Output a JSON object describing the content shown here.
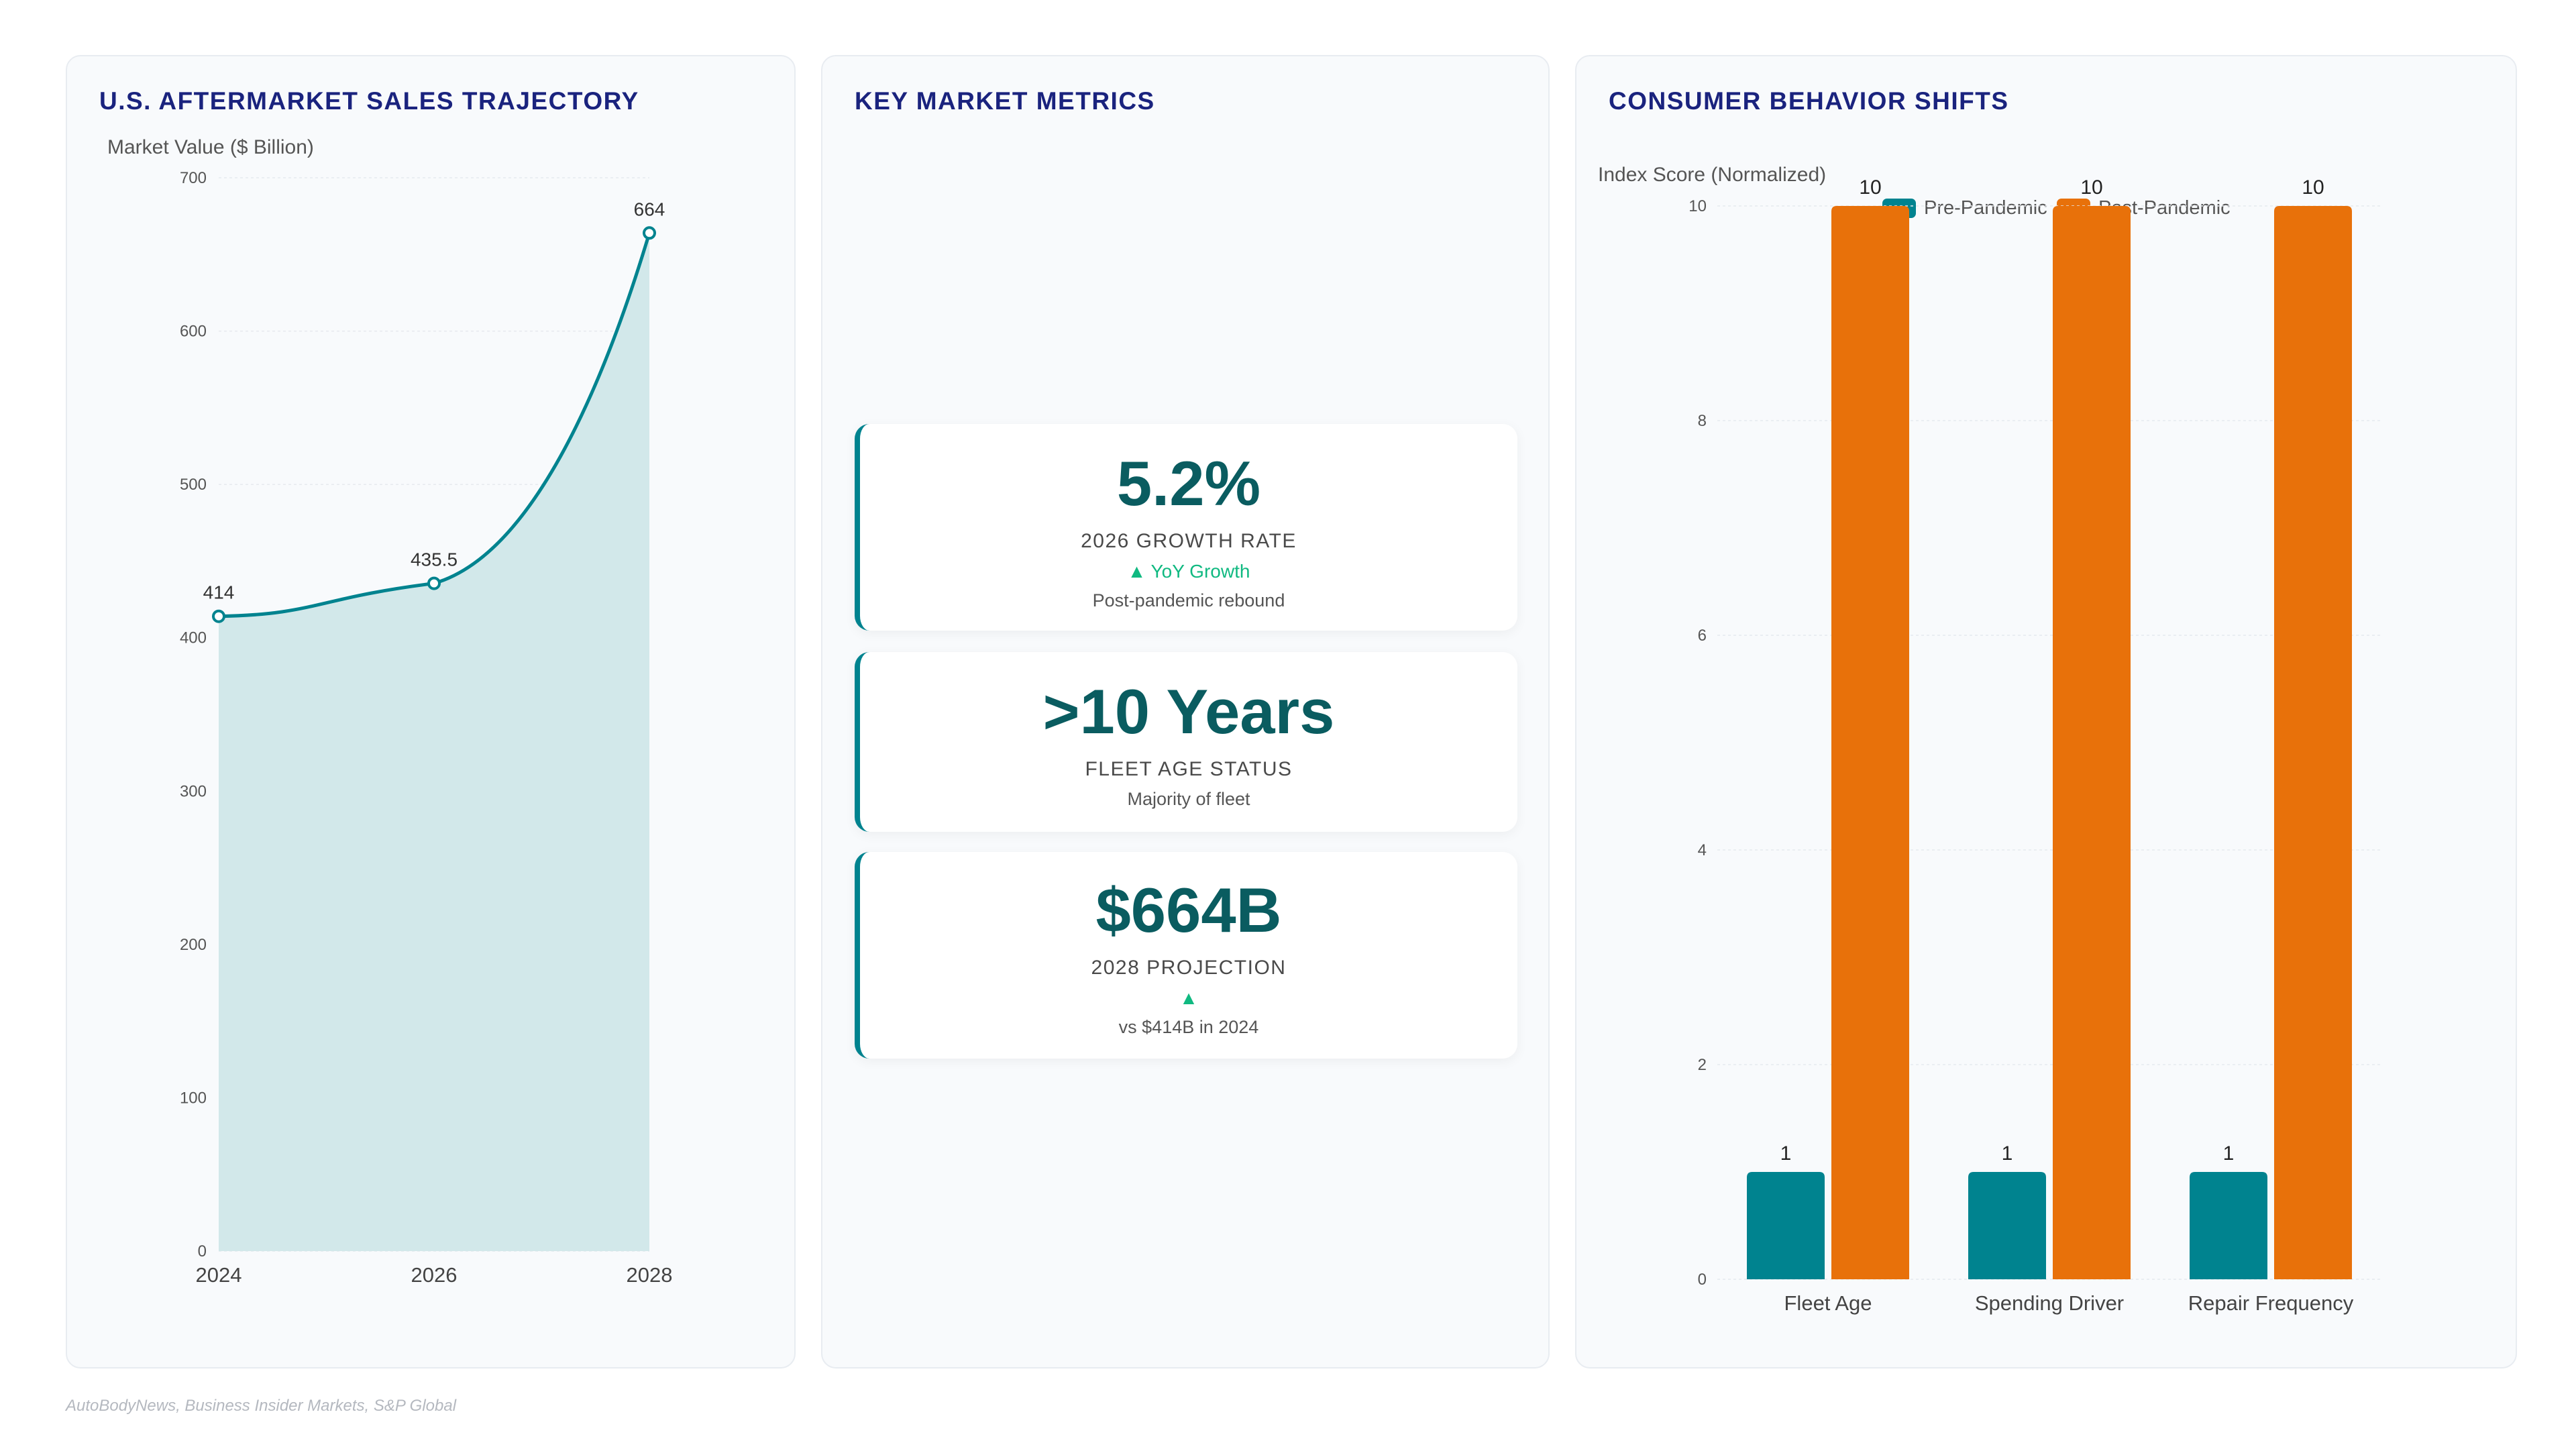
{
  "colors": {
    "teal": "#00838f",
    "teal_fill": "#d2e8ea",
    "orange": "#e8710a",
    "title_navy": "#1a237e",
    "green": "#10b981"
  },
  "panels": {
    "left": {
      "title": "U.S. AFTERMARKET SALES TRAJECTORY"
    },
    "middle": {
      "title": "KEY MARKET METRICS"
    },
    "right": {
      "title": "CONSUMER BEHAVIOR SHIFTS"
    }
  },
  "metrics": [
    {
      "value": "5.2%",
      "label": "2026 GROWTH RATE",
      "trend": "▲ YoY Growth",
      "note": "Post-pandemic rebound"
    },
    {
      "value": ">10 Years",
      "label": "FLEET AGE STATUS",
      "note": "Majority of fleet"
    },
    {
      "value": "$664B",
      "label": "2028 PROJECTION",
      "trend": "▲",
      "note": "vs $414B in 2024"
    }
  ],
  "legend": {
    "series_a": "Pre-Pandemic",
    "series_b": "Post-Pandemic"
  },
  "source": "AutoBodyNews, Business Insider Markets, S&P Global",
  "chart_data": [
    {
      "type": "area",
      "title": "U.S. AFTERMARKET SALES TRAJECTORY",
      "ylabel": "Market Value ($ Billion)",
      "xlabel": "",
      "x": [
        "2024",
        "2026",
        "2028"
      ],
      "series": [
        {
          "values": [
            414,
            435.5,
            664
          ]
        }
      ],
      "ylim": [
        0,
        700
      ],
      "yticks": [
        0,
        100,
        200,
        300,
        400,
        500,
        600,
        700
      ],
      "data_labels": [
        "414",
        "435.5",
        "664"
      ],
      "grid": true,
      "color": "#00838f"
    },
    {
      "type": "bar",
      "title": "CONSUMER BEHAVIOR SHIFTS",
      "ylabel": "Index Score (Normalized)",
      "xlabel": "",
      "categories": [
        "Fleet Age",
        "Spending Driver",
        "Repair Frequency"
      ],
      "series": [
        {
          "name": "Pre-Pandemic",
          "values": [
            1,
            1,
            1
          ],
          "color": "#00838f"
        },
        {
          "name": "Post-Pandemic",
          "values": [
            10,
            10,
            10
          ],
          "color": "#e8710a"
        }
      ],
      "ylim": [
        0,
        10
      ],
      "yticks": [
        0,
        2,
        4,
        6,
        8,
        10
      ],
      "legend": "top-center",
      "grid": true
    }
  ]
}
